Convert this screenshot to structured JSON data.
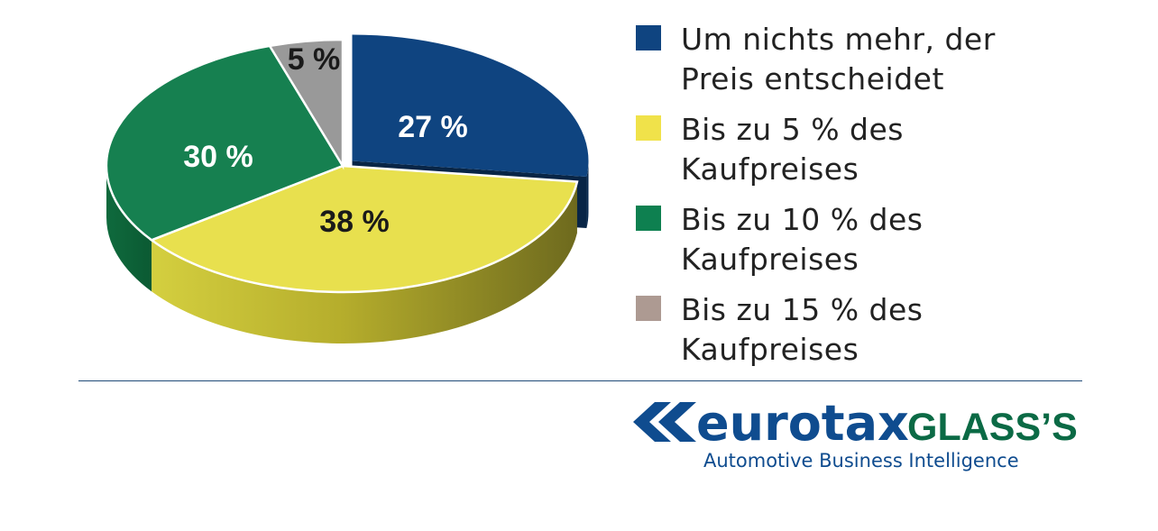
{
  "chart_data": {
    "type": "pie",
    "slices": [
      {
        "label": "Um nichts mehr, der Preis entscheidet",
        "value": 27,
        "value_label": "27 %",
        "color": "#0f4480",
        "label_color": "#ffffff",
        "exploded": true
      },
      {
        "label": "Bis zu 5 % des Kaufpreises",
        "value": 38,
        "value_label": "38 %",
        "color": "#e8e04e",
        "label_color": "#1a1a1a",
        "exploded": false
      },
      {
        "label": "Bis zu 10 % des Kaufpreises",
        "value": 30,
        "value_label": "30 %",
        "color": "#168050",
        "label_color": "#ffffff",
        "exploded": false
      },
      {
        "label": "Bis zu 15 % des Kaufpreises",
        "value": 5,
        "value_label": "5 %",
        "color": "#999999",
        "label_color": "#1a1a1a",
        "exploded": false
      }
    ],
    "legend_placement": "right",
    "style": "3d"
  },
  "legend": {
    "items": [
      {
        "line1": "Um nichts mehr, der",
        "line2": "Preis entscheidet",
        "color": "#0f4480"
      },
      {
        "line1": "Bis zu 5 % des",
        "line2": "Kaufpreises",
        "color": "#f0e24a"
      },
      {
        "line1": "Bis zu 10 % des",
        "line2": "Kaufpreises",
        "color": "#0e8050"
      },
      {
        "line1": "Bis zu 15 % des",
        "line2": "Kaufpreises",
        "color": "#ad9a92"
      }
    ]
  },
  "logo": {
    "part1": "eurotax",
    "part2": "GLASS’S",
    "tagline": "Automotive Business Intelligence",
    "blue": "#0f4c8f",
    "green": "#0b6a45"
  }
}
